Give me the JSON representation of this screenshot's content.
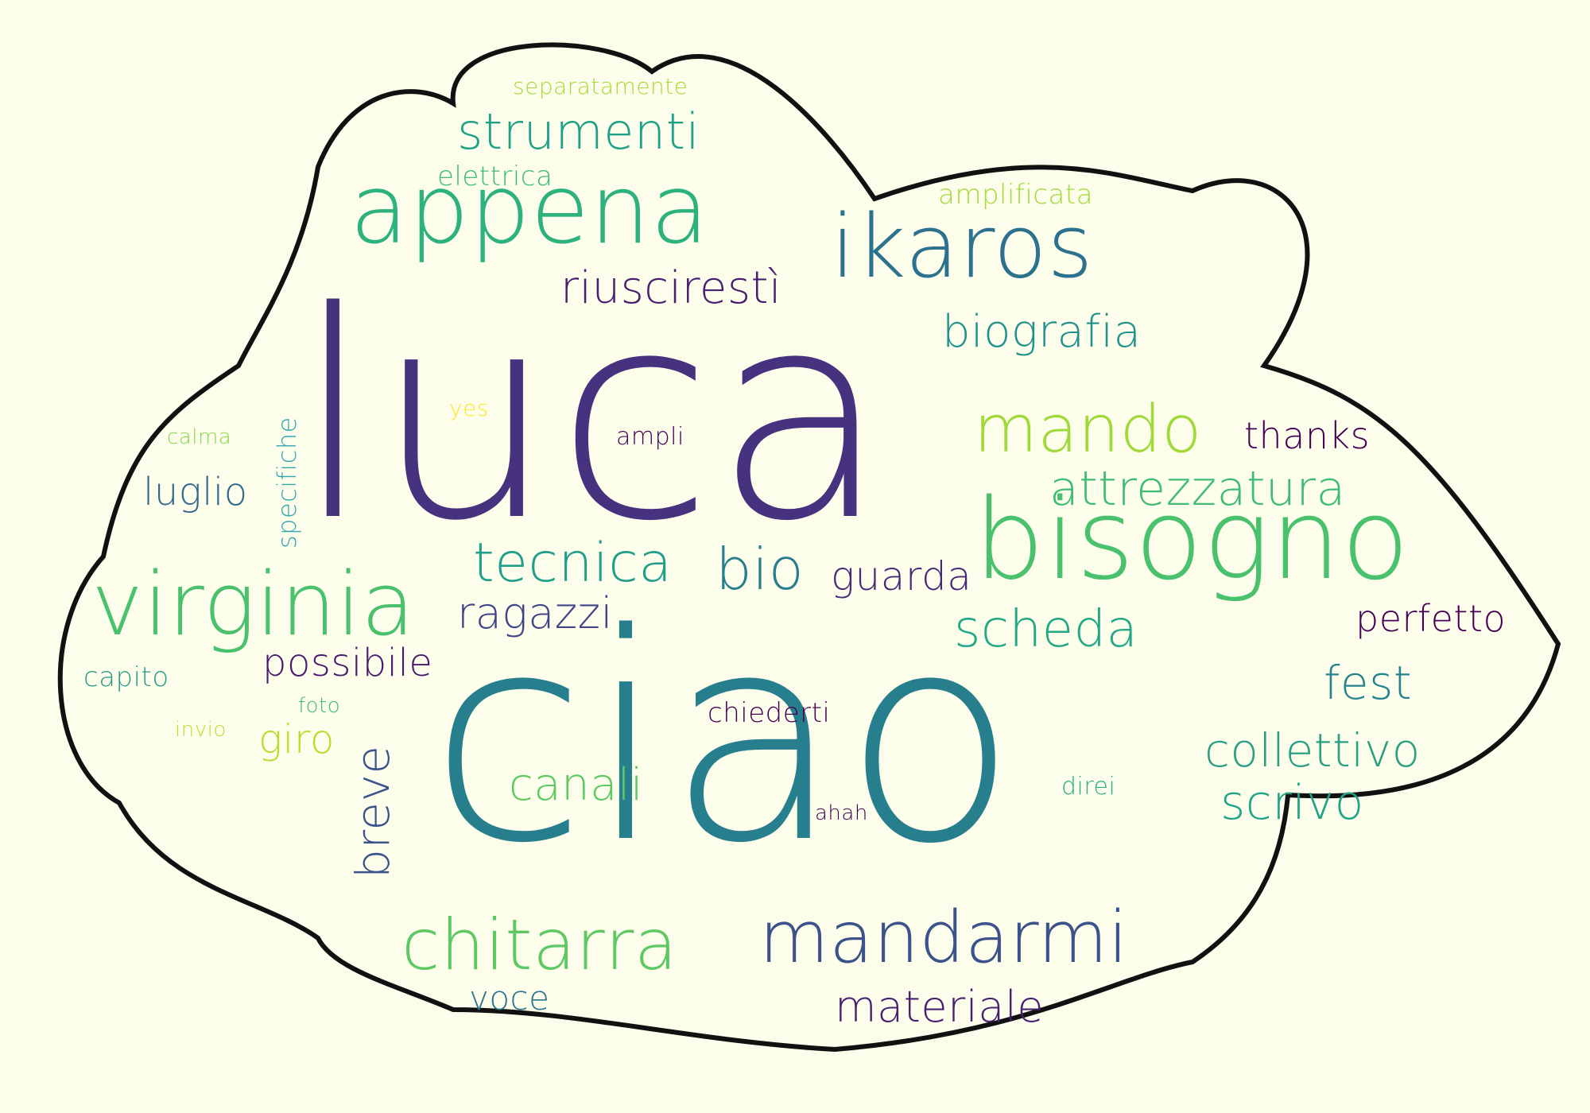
{
  "background_color": "#fdfdec",
  "cloud": {
    "fill": "#fdfdec",
    "outline": "#111111"
  },
  "palette": {
    "purple": "#46327e",
    "deep_blue": "#365c8d",
    "teal": "#277f8e",
    "green_teal": "#1fa187",
    "green": "#4ac16d",
    "lime": "#a0da39",
    "yellow": "#fde725",
    "dark_purple": "#440154"
  },
  "words": [
    {
      "text": "luca",
      "color": "#46327e"
    },
    {
      "text": "ciao",
      "color": "#277f8e"
    },
    {
      "text": "appena",
      "color": "#2db27d"
    },
    {
      "text": "bisogno",
      "color": "#4ac16d"
    },
    {
      "text": "ikaros",
      "color": "#2c728e"
    },
    {
      "text": "virginia",
      "color": "#4ac16d"
    },
    {
      "text": "mandarmi",
      "color": "#3b528b"
    },
    {
      "text": "chitarra",
      "color": "#5ec962"
    },
    {
      "text": "mando",
      "color": "#a0da39"
    },
    {
      "text": "strumenti",
      "color": "#1fa187"
    },
    {
      "text": "riuscirestì",
      "color": "#481f70"
    },
    {
      "text": "biografia",
      "color": "#21918c"
    },
    {
      "text": "attrezzatura",
      "color": "#3fbc73"
    },
    {
      "text": "tecnica",
      "color": "#1f9e89"
    },
    {
      "text": "bio",
      "color": "#277f8e"
    },
    {
      "text": "guarda",
      "color": "#482878"
    },
    {
      "text": "ragazzi",
      "color": "#414487"
    },
    {
      "text": "scheda",
      "color": "#22a884"
    },
    {
      "text": "perfetto",
      "color": "#440154"
    },
    {
      "text": "fest",
      "color": "#26828e"
    },
    {
      "text": "collettivo",
      "color": "#2a9f83"
    },
    {
      "text": "scrivo",
      "color": "#20a486"
    },
    {
      "text": "materiale",
      "color": "#482071"
    },
    {
      "text": "canali",
      "color": "#5ec962"
    },
    {
      "text": "possibile",
      "color": "#481a6c"
    },
    {
      "text": "luglio",
      "color": "#31688e"
    },
    {
      "text": "giro",
      "color": "#b5de2b"
    },
    {
      "text": "capito",
      "color": "#2a9c89"
    },
    {
      "text": "voce",
      "color": "#2c718e"
    },
    {
      "text": "thanks",
      "color": "#440154"
    },
    {
      "text": "chiederti",
      "color": "#440154"
    },
    {
      "text": "ampli",
      "color": "#440154"
    },
    {
      "text": "direi",
      "color": "#27ad81"
    },
    {
      "text": "ahah",
      "color": "#440154"
    },
    {
      "text": "foto",
      "color": "#38b977"
    },
    {
      "text": "invio",
      "color": "#bddf26"
    },
    {
      "text": "calma",
      "color": "#86d549"
    },
    {
      "text": "yes",
      "color": "#fde725"
    },
    {
      "text": "elettrica",
      "color": "#3dbc74"
    },
    {
      "text": "amplificata",
      "color": "#a2da37"
    },
    {
      "text": "separatamente",
      "color": "#a5db36"
    },
    {
      "text": "breve",
      "color": "#3b528b"
    },
    {
      "text": "specifiche",
      "color": "#33a5b0"
    }
  ]
}
